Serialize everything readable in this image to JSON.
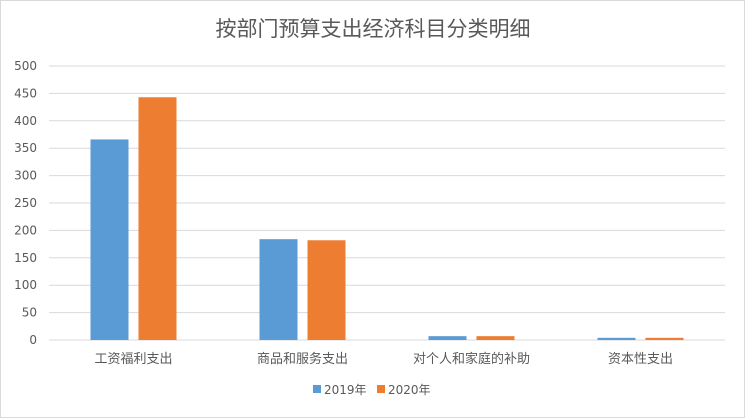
{
  "chart_data": {
    "type": "bar",
    "title": "按部门预算支出经济科目分类明细",
    "categories": [
      "工资福利支出",
      "商品和服务支出",
      "对个人和家庭的补助",
      "资本性支出"
    ],
    "series": [
      {
        "name": "2019年",
        "values": [
          366,
          184,
          7,
          4
        ],
        "color": "#5b9bd5"
      },
      {
        "name": "2020年",
        "values": [
          443,
          182,
          7,
          4
        ],
        "color": "#ed7d31"
      }
    ],
    "ylim": [
      0,
      500
    ],
    "yticks": [
      "0",
      "50",
      "100",
      "150",
      "200",
      "250",
      "300",
      "350",
      "400",
      "450",
      "500"
    ],
    "grid": true,
    "legend_position": "bottom",
    "gridline_color": "#d9d9d9"
  }
}
